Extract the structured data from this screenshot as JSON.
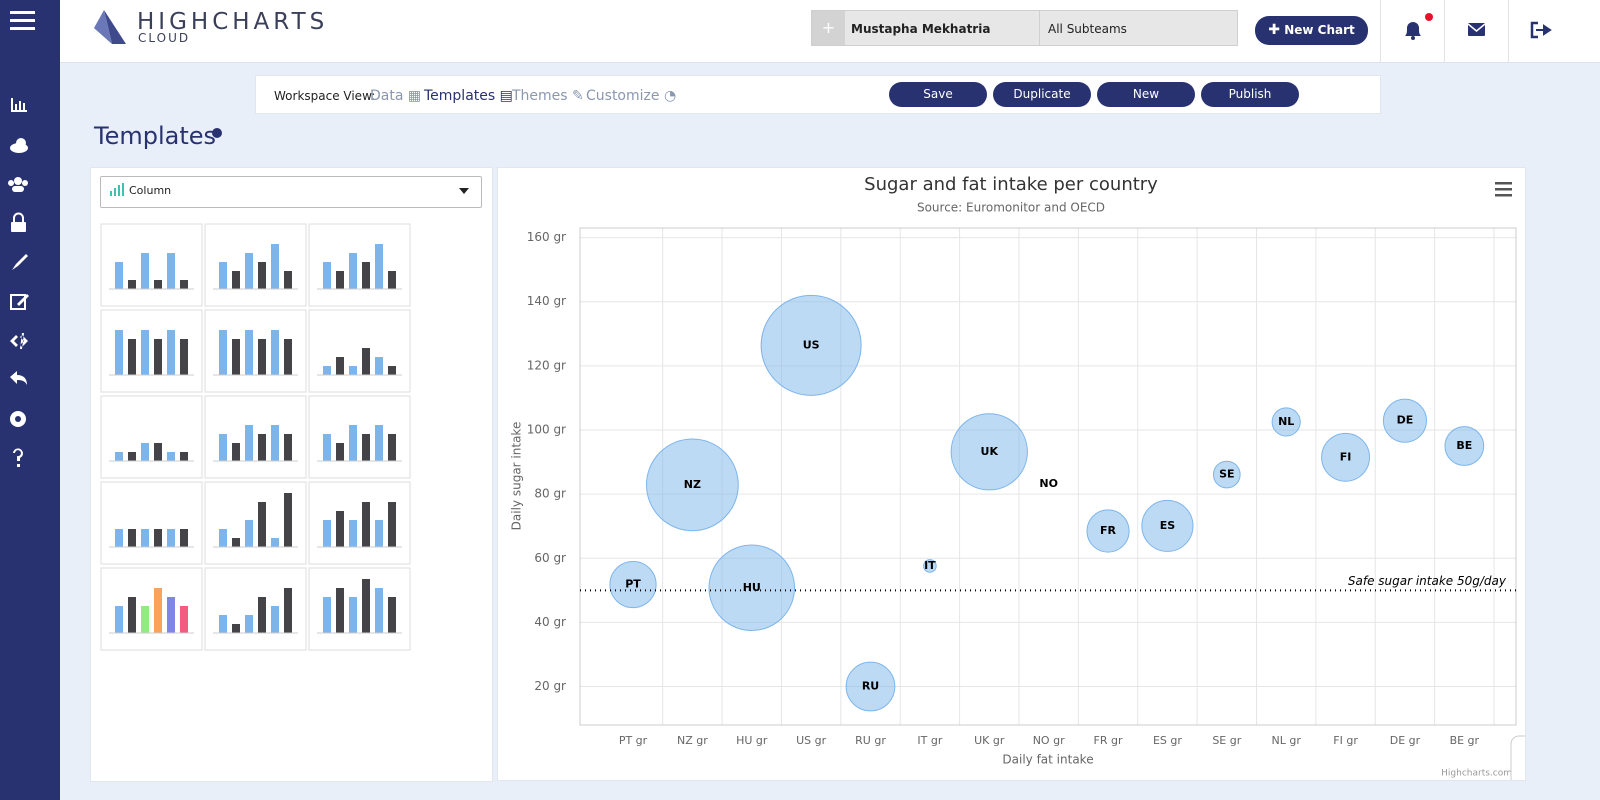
{
  "header": {
    "logo_main": "HIGHCHARTS",
    "logo_sub": "CLOUD",
    "add_button": "+",
    "user": "Mustapha Mekhatria",
    "team": "All Subteams",
    "new_chart": "New Chart"
  },
  "toolbar": {
    "workspace_label": "Workspace View:",
    "views": [
      "Data",
      "Templates",
      "Themes",
      "Customize"
    ],
    "buttons": [
      "Save",
      "Duplicate",
      "New",
      "Publish"
    ]
  },
  "page_title": "Templates",
  "template_select": "Column",
  "chart_data": {
    "type": "bubble",
    "title": "Sugar and fat intake per country",
    "subtitle": "Source: Euromonitor and OECD",
    "x_label": "Daily fat intake",
    "y_label": "Daily sugar intake",
    "categories": [
      "PT gr",
      "NZ gr",
      "HU gr",
      "US gr",
      "RU gr",
      "IT gr",
      "UK gr",
      "NO gr",
      "FR gr",
      "ES gr",
      "SE gr",
      "NL gr",
      "FI gr",
      "DE gr",
      "BE gr"
    ],
    "labels": [
      "PT",
      "NZ",
      "HU",
      "US",
      "RU",
      "IT",
      "UK",
      "NO",
      "FR",
      "ES",
      "SE",
      "NL",
      "FI",
      "DE",
      "BE"
    ],
    "values": [
      51.8,
      82.9,
      50.8,
      126.4,
      20,
      57.6,
      93.2,
      83.1,
      68.5,
      70.1,
      86.1,
      102.5,
      91.5,
      102.9,
      95
    ],
    "sizes": [
      15.4,
      31.3,
      28.5,
      35.3,
      16,
      10.4,
      24.7,
      10,
      14.5,
      16.6,
      11.8,
      12,
      15.8,
      14.7,
      13.8
    ],
    "color": "#7cb5ec",
    "ylim": [
      8,
      163
    ],
    "yticks": [
      {
        "value": 20,
        "label": "20 gr"
      },
      {
        "value": 40,
        "label": "40 gr"
      },
      {
        "value": 60,
        "label": "60 gr"
      },
      {
        "value": 80,
        "label": "80 gr"
      },
      {
        "value": 100,
        "label": "100 gr"
      },
      {
        "value": 120,
        "label": "120 gr"
      },
      {
        "value": 140,
        "label": "140 gr"
      },
      {
        "value": 160,
        "label": "160 gr"
      }
    ],
    "grid": true,
    "plot_line": {
      "value": 50,
      "label": "Safe sugar intake 50g/day"
    }
  },
  "credits": "Highcharts.com"
}
